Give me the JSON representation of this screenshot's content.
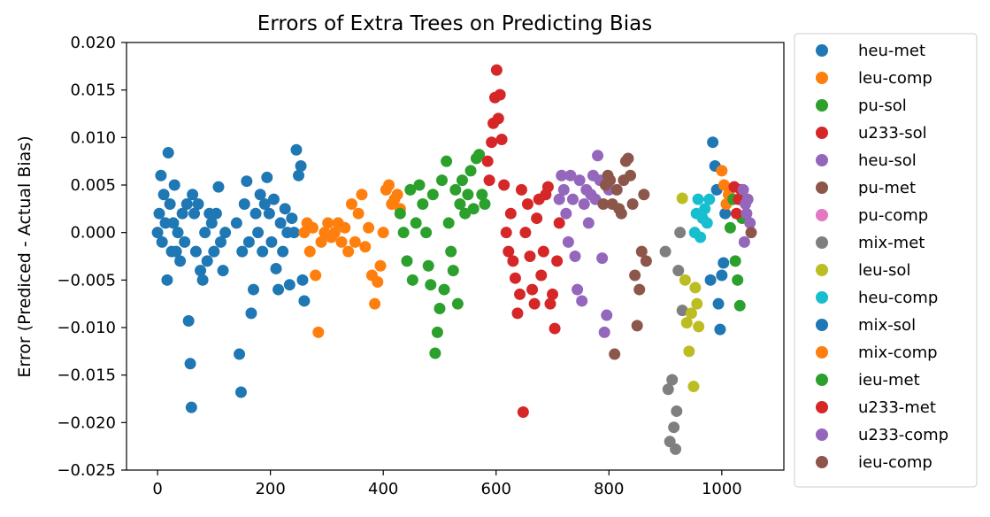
{
  "chart_data": {
    "type": "scatter",
    "title": "Errors of Extra Trees on Predicting Bias",
    "xlabel": "",
    "ylabel": "Error (Prediced - Actual Bias)",
    "xlim": [
      -55,
      1110
    ],
    "ylim": [
      -0.025,
      0.02
    ],
    "xticks": [
      0,
      200,
      400,
      600,
      800,
      1000
    ],
    "yticks": [
      -0.025,
      -0.02,
      -0.015,
      -0.01,
      -0.005,
      0.0,
      0.005,
      0.01,
      0.015,
      0.02
    ],
    "xtick_labels": [
      "0",
      "200",
      "400",
      "600",
      "800",
      "1000"
    ],
    "ytick_labels": [
      "−0.025",
      "−0.020",
      "−0.015",
      "−0.010",
      "−0.005",
      "0.000",
      "0.005",
      "0.010",
      "0.015",
      "0.020"
    ],
    "grid": false,
    "legend_position": "outside-right",
    "series": [
      {
        "name": "heu-met",
        "color": "#1f77b4",
        "points": [
          [
            0,
            0.0
          ],
          [
            3,
            0.002
          ],
          [
            6,
            0.006
          ],
          [
            8,
            -0.001
          ],
          [
            11,
            0.004
          ],
          [
            14,
            0.001
          ],
          [
            17,
            -0.005
          ],
          [
            19,
            0.0084
          ],
          [
            22,
            0.003
          ],
          [
            25,
            -0.002
          ],
          [
            28,
            0.001
          ],
          [
            30,
            0.005
          ],
          [
            33,
            -0.002
          ],
          [
            36,
            0.0
          ],
          [
            40,
            -0.003
          ],
          [
            44,
            0.002
          ],
          [
            48,
            -0.001
          ],
          [
            52,
            0.003
          ],
          [
            55,
            -0.0093
          ],
          [
            58,
            -0.0138
          ],
          [
            60,
            -0.0184
          ],
          [
            62,
            0.004
          ],
          [
            65,
            0.002
          ],
          [
            68,
            -0.002
          ],
          [
            72,
            0.003
          ],
          [
            76,
            -0.004
          ],
          [
            80,
            -0.005
          ],
          [
            84,
            0.0
          ],
          [
            88,
            -0.003
          ],
          [
            92,
            0.002
          ],
          [
            96,
            0.001
          ],
          [
            100,
            -0.002
          ],
          [
            104,
            0.002
          ],
          [
            108,
            0.0048
          ],
          [
            112,
            -0.001
          ],
          [
            116,
            -0.004
          ],
          [
            120,
            0.0
          ]
        ]
      },
      {
        "name": "leu-comp",
        "color": "#ff7f0e",
        "points": []
      },
      {
        "name": "pu-sol",
        "color": "#2ca02c",
        "points": []
      },
      {
        "name": "u233-sol",
        "color": "#d62728",
        "points": []
      },
      {
        "name": "heu-sol",
        "color": "#9467bd",
        "points": []
      },
      {
        "name": "pu-met",
        "color": "#8c564b",
        "points": []
      },
      {
        "name": "pu-comp",
        "color": "#e377c2",
        "points": []
      },
      {
        "name": "mix-met",
        "color": "#7f7f7f",
        "points": [
          [
            900,
            -0.002
          ],
          [
            905,
            -0.0165
          ],
          [
            908,
            -0.022
          ],
          [
            912,
            -0.0155
          ],
          [
            915,
            -0.0205
          ],
          [
            918,
            -0.0228
          ],
          [
            920,
            -0.0188
          ],
          [
            923,
            -0.004
          ],
          [
            926,
            0.0
          ],
          [
            930,
            -0.0082
          ]
        ]
      },
      {
        "name": "leu-sol",
        "color": "#bcbd22",
        "points": [
          [
            930,
            0.0036
          ],
          [
            935,
            -0.005
          ],
          [
            938,
            -0.0095
          ],
          [
            942,
            -0.0125
          ],
          [
            946,
            -0.0085
          ],
          [
            950,
            -0.0162
          ],
          [
            953,
            -0.0058
          ],
          [
            956,
            -0.0075
          ],
          [
            959,
            -0.0099
          ]
        ]
      },
      {
        "name": "heu-comp",
        "color": "#17becf",
        "points": [
          [
            952,
            0.0
          ],
          [
            955,
            0.002
          ],
          [
            958,
            0.0035
          ],
          [
            962,
            -0.0005
          ],
          [
            966,
            0.0015
          ],
          [
            970,
            0.0025
          ],
          [
            974,
            0.001
          ],
          [
            978,
            0.0035
          ]
        ]
      },
      {
        "name": "mix-sol",
        "color": "#1f77b4",
        "points": [
          [
            140,
            0.001
          ],
          [
            145,
            -0.0128
          ],
          [
            148,
            -0.0168
          ],
          [
            150,
            -0.002
          ],
          [
            154,
            0.003
          ],
          [
            158,
            0.0054
          ],
          [
            162,
            -0.001
          ],
          [
            166,
            -0.0085
          ],
          [
            170,
            -0.006
          ],
          [
            174,
            0.002
          ],
          [
            178,
            0.0
          ],
          [
            182,
            0.004
          ],
          [
            186,
            -0.002
          ],
          [
            190,
            0.003
          ],
          [
            194,
            0.0058
          ],
          [
            198,
            0.002
          ],
          [
            202,
            -0.001
          ],
          [
            206,
            0.0035
          ],
          [
            210,
            -0.0038
          ],
          [
            214,
            -0.006
          ],
          [
            218,
            0.001
          ],
          [
            222,
            -0.002
          ],
          [
            226,
            0.0025
          ],
          [
            230,
            0.0
          ],
          [
            234,
            -0.0055
          ],
          [
            238,
            0.0015
          ],
          [
            242,
            0.0
          ],
          [
            246,
            0.0087
          ],
          [
            250,
            0.006
          ],
          [
            254,
            0.007
          ],
          [
            257,
            -0.005
          ],
          [
            260,
            -0.0072
          ],
          [
            980,
            -0.005
          ],
          [
            984,
            0.0095
          ],
          [
            988,
            0.007
          ],
          [
            991,
            0.0045
          ],
          [
            994,
            -0.0075
          ],
          [
            997,
            -0.0102
          ],
          [
            1000,
            -0.0045
          ],
          [
            1003,
            -0.0032
          ],
          [
            1006,
            0.002
          ]
        ]
      },
      {
        "name": "mix-comp",
        "color": "#ff7f0e",
        "points": [
          [
            260,
            0.0
          ],
          [
            265,
            0.001
          ],
          [
            270,
            -0.002
          ],
          [
            275,
            0.0005
          ],
          [
            280,
            -0.0045
          ],
          [
            285,
            -0.0105
          ],
          [
            290,
            -0.001
          ],
          [
            296,
            0.0
          ],
          [
            302,
            0.001
          ],
          [
            308,
            -0.0005
          ],
          [
            314,
            0.0
          ],
          [
            320,
            0.001
          ],
          [
            326,
            -0.001
          ],
          [
            332,
            0.0005
          ],
          [
            338,
            -0.002
          ],
          [
            344,
            0.003
          ],
          [
            350,
            -0.001
          ],
          [
            356,
            0.002
          ],
          [
            362,
            0.004
          ],
          [
            368,
            -0.0015
          ],
          [
            374,
            0.0005
          ],
          [
            380,
            -0.0045
          ],
          [
            385,
            -0.0075
          ],
          [
            390,
            -0.0052
          ],
          [
            395,
            -0.0035
          ],
          [
            400,
            0.0
          ],
          [
            405,
            0.0045
          ],
          [
            410,
            0.005
          ],
          [
            415,
            0.003
          ],
          [
            420,
            0.0035
          ],
          [
            425,
            0.004
          ],
          [
            430,
            0.0025
          ],
          [
            1000,
            0.0065
          ],
          [
            1004,
            0.005
          ],
          [
            1008,
            0.003
          ],
          [
            1012,
            0.004
          ]
        ]
      },
      {
        "name": "ieu-met",
        "color": "#2ca02c",
        "points": [
          [
            430,
            0.002
          ],
          [
            436,
            0.0
          ],
          [
            442,
            -0.003
          ],
          [
            448,
            0.0045
          ],
          [
            452,
            -0.005
          ],
          [
            458,
            0.001
          ],
          [
            464,
            0.005
          ],
          [
            470,
            0.003
          ],
          [
            476,
            0.0
          ],
          [
            480,
            -0.0035
          ],
          [
            484,
            -0.0055
          ],
          [
            488,
            0.004
          ],
          [
            492,
            -0.0127
          ],
          [
            496,
            -0.0105
          ],
          [
            500,
            -0.008
          ],
          [
            504,
            0.0055
          ],
          [
            508,
            -0.006
          ],
          [
            512,
            0.0075
          ],
          [
            516,
            0.001
          ],
          [
            520,
            -0.002
          ],
          [
            524,
            -0.004
          ],
          [
            528,
            0.0045
          ],
          [
            532,
            -0.0075
          ],
          [
            536,
            0.003
          ],
          [
            540,
            0.0055
          ],
          [
            545,
            0.002
          ],
          [
            550,
            0.004
          ],
          [
            555,
            0.0065
          ],
          [
            560,
            0.0025
          ],
          [
            565,
            0.0078
          ],
          [
            570,
            0.0082
          ],
          [
            575,
            0.004
          ],
          [
            580,
            0.003
          ],
          [
            1015,
            0.0005
          ],
          [
            1020,
            0.0035
          ],
          [
            1024,
            -0.003
          ],
          [
            1028,
            -0.005
          ],
          [
            1032,
            -0.0077
          ],
          [
            1036,
            0.0015
          ]
        ]
      },
      {
        "name": "u233-met",
        "color": "#d62728",
        "points": [
          [
            585,
            0.0075
          ],
          [
            588,
            0.0055
          ],
          [
            592,
            0.0095
          ],
          [
            595,
            0.0115
          ],
          [
            598,
            0.0142
          ],
          [
            601,
            0.0171
          ],
          [
            604,
            0.012
          ],
          [
            607,
            0.0145
          ],
          [
            610,
            0.0098
          ],
          [
            614,
            0.005
          ],
          [
            618,
            0.0
          ],
          [
            622,
            -0.002
          ],
          [
            626,
            0.002
          ],
          [
            630,
            -0.003
          ],
          [
            634,
            -0.0048
          ],
          [
            638,
            -0.0085
          ],
          [
            642,
            -0.0065
          ],
          [
            645,
            0.0045
          ],
          [
            648,
            -0.0189
          ],
          [
            652,
            0.0
          ],
          [
            656,
            0.003
          ],
          [
            660,
            -0.0025
          ],
          [
            664,
            -0.006
          ],
          [
            668,
            -0.0075
          ],
          [
            672,
            0.0015
          ],
          [
            676,
            0.0035
          ],
          [
            680,
            -0.0045
          ],
          [
            684,
            -0.002
          ],
          [
            688,
            0.004
          ],
          [
            692,
            0.0048
          ],
          [
            696,
            -0.0075
          ],
          [
            700,
            -0.0065
          ],
          [
            704,
            -0.0101
          ],
          [
            708,
            -0.003
          ],
          [
            712,
            0.001
          ],
          [
            1022,
            0.0048
          ],
          [
            1026,
            0.002
          ],
          [
            1030,
            0.0035
          ],
          [
            1034,
            0.0045
          ]
        ]
      },
      {
        "name": "u233-comp",
        "color": "#9467bd",
        "points": [
          [
            712,
            0.0035
          ],
          [
            716,
            0.006
          ],
          [
            720,
            0.0045
          ],
          [
            724,
            0.002
          ],
          [
            728,
            -0.001
          ],
          [
            732,
            0.006
          ],
          [
            736,
            0.0035
          ],
          [
            740,
            -0.0025
          ],
          [
            744,
            -0.006
          ],
          [
            748,
            0.0055
          ],
          [
            752,
            -0.0072
          ],
          [
            756,
            0.003
          ],
          [
            760,
            0.0045
          ],
          [
            764,
            0.001
          ],
          [
            768,
            0.004
          ],
          [
            772,
            0.006
          ],
          [
            776,
            0.0035
          ],
          [
            780,
            0.0081
          ],
          [
            784,
            0.0055
          ],
          [
            788,
            -0.0027
          ],
          [
            792,
            -0.0105
          ],
          [
            796,
            -0.0087
          ],
          [
            800,
            0.0045
          ],
          [
            1038,
            0.0045
          ],
          [
            1042,
            0.003
          ],
          [
            1046,
            0.0035
          ],
          [
            1050,
            0.001
          ],
          [
            1044,
            0.002
          ],
          [
            1040,
            -0.001
          ]
        ]
      },
      {
        "name": "ieu-comp",
        "color": "#8c564b",
        "points": [
          [
            790,
            0.003
          ],
          [
            794,
            0.005
          ],
          [
            798,
            0.006
          ],
          [
            802,
            0.0055
          ],
          [
            806,
            0.003
          ],
          [
            810,
            -0.0128
          ],
          [
            814,
            0.0045
          ],
          [
            818,
            0.0025
          ],
          [
            822,
            0.002
          ],
          [
            826,
            0.0055
          ],
          [
            830,
            0.0075
          ],
          [
            834,
            0.0078
          ],
          [
            838,
            0.006
          ],
          [
            842,
            0.003
          ],
          [
            846,
            -0.0045
          ],
          [
            850,
            -0.0098
          ],
          [
            854,
            -0.006
          ],
          [
            858,
            -0.002
          ],
          [
            862,
            0.004
          ],
          [
            866,
            -0.003
          ],
          [
            1052,
            0.0
          ]
        ]
      }
    ]
  }
}
